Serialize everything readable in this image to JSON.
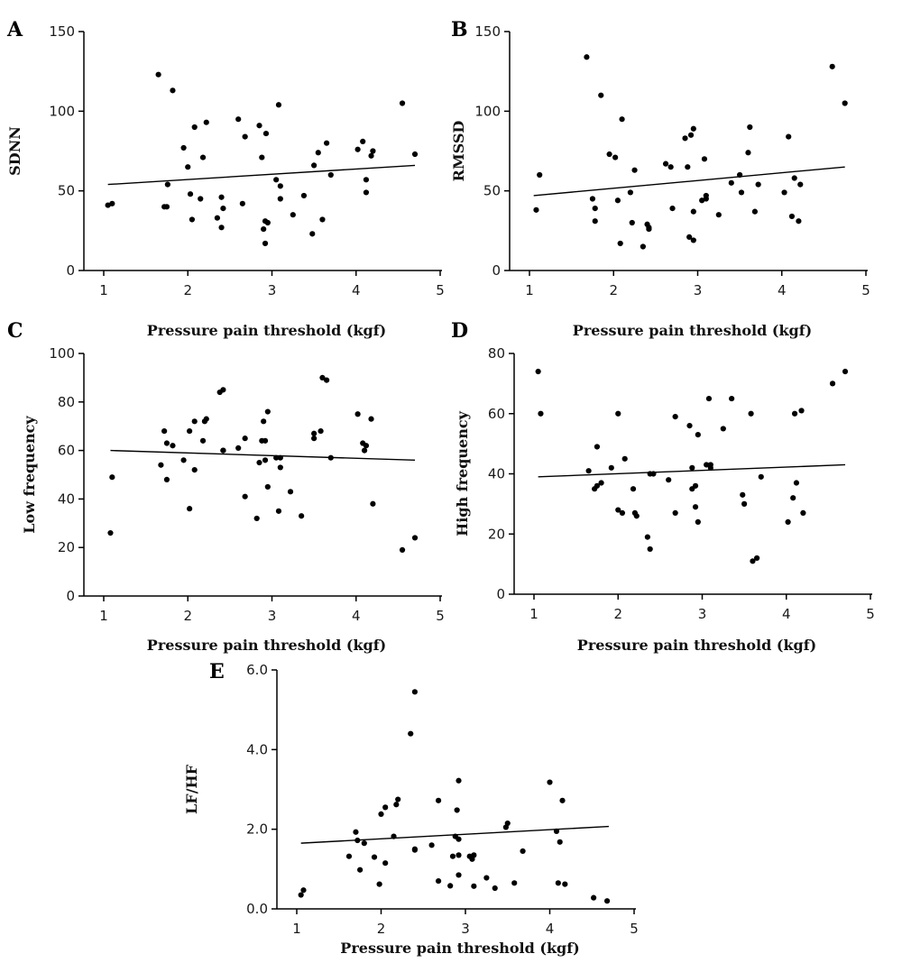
{
  "chart_data": [
    {
      "type": "scatter",
      "panel": "A",
      "title": "",
      "xlabel": "Pressure pain threshold (kgf)",
      "ylabel": "SDNN",
      "xlim": [
        1,
        5
      ],
      "ylim": [
        0,
        150
      ],
      "xticks": [
        "1",
        "2",
        "3",
        "4",
        "5"
      ],
      "yticks": [
        "0",
        "50",
        "100",
        "150"
      ],
      "trendline": [
        [
          1.05,
          54
        ],
        [
          4.7,
          66
        ]
      ],
      "points": [
        [
          1.05,
          41
        ],
        [
          1.1,
          42
        ],
        [
          1.65,
          123
        ],
        [
          1.72,
          40
        ],
        [
          1.75,
          40
        ],
        [
          1.76,
          54
        ],
        [
          1.82,
          113
        ],
        [
          1.95,
          77
        ],
        [
          2.0,
          65
        ],
        [
          2.03,
          48
        ],
        [
          2.05,
          32
        ],
        [
          2.08,
          90
        ],
        [
          2.15,
          45
        ],
        [
          2.18,
          71
        ],
        [
          2.22,
          93
        ],
        [
          2.35,
          33
        ],
        [
          2.4,
          27
        ],
        [
          2.4,
          46
        ],
        [
          2.42,
          39
        ],
        [
          2.6,
          95
        ],
        [
          2.65,
          42
        ],
        [
          2.68,
          84
        ],
        [
          2.85,
          91
        ],
        [
          2.88,
          71
        ],
        [
          2.9,
          26
        ],
        [
          2.92,
          31
        ],
        [
          2.92,
          17
        ],
        [
          2.95,
          30
        ],
        [
          2.93,
          86
        ],
        [
          3.05,
          57
        ],
        [
          3.08,
          104
        ],
        [
          3.1,
          53
        ],
        [
          3.1,
          45
        ],
        [
          3.25,
          35
        ],
        [
          3.38,
          47
        ],
        [
          3.48,
          23
        ],
        [
          3.5,
          66
        ],
        [
          3.55,
          74
        ],
        [
          3.6,
          32
        ],
        [
          3.65,
          80
        ],
        [
          3.7,
          60
        ],
        [
          4.02,
          76
        ],
        [
          4.08,
          81
        ],
        [
          4.12,
          49
        ],
        [
          4.12,
          57
        ],
        [
          4.18,
          72
        ],
        [
          4.2,
          75
        ],
        [
          4.55,
          105
        ],
        [
          4.7,
          73
        ]
      ]
    },
    {
      "type": "scatter",
      "panel": "B",
      "title": "",
      "xlabel": "Pressure pain threshold (kgf)",
      "ylabel": "RMSSD",
      "xlim": [
        1,
        5
      ],
      "ylim": [
        0,
        150
      ],
      "xticks": [
        "1",
        "2",
        "3",
        "4",
        "5"
      ],
      "yticks": [
        "0",
        "50",
        "100",
        "150"
      ],
      "trendline": [
        [
          1.05,
          47
        ],
        [
          4.75,
          65
        ]
      ],
      "points": [
        [
          1.08,
          38
        ],
        [
          1.12,
          60
        ],
        [
          1.68,
          134
        ],
        [
          1.75,
          45
        ],
        [
          1.78,
          39
        ],
        [
          1.78,
          31
        ],
        [
          1.85,
          110
        ],
        [
          1.95,
          73
        ],
        [
          2.02,
          71
        ],
        [
          2.05,
          44
        ],
        [
          2.08,
          17
        ],
        [
          2.1,
          95
        ],
        [
          2.2,
          49
        ],
        [
          2.22,
          30
        ],
        [
          2.25,
          63
        ],
        [
          2.35,
          15
        ],
        [
          2.4,
          29
        ],
        [
          2.42,
          26
        ],
        [
          2.42,
          27
        ],
        [
          2.62,
          67
        ],
        [
          2.68,
          65
        ],
        [
          2.7,
          39
        ],
        [
          2.85,
          83
        ],
        [
          2.88,
          65
        ],
        [
          2.9,
          21
        ],
        [
          2.92,
          85
        ],
        [
          2.95,
          19
        ],
        [
          2.95,
          89
        ],
        [
          2.95,
          37
        ],
        [
          3.05,
          44
        ],
        [
          3.08,
          70
        ],
        [
          3.1,
          47
        ],
        [
          3.1,
          45
        ],
        [
          3.25,
          35
        ],
        [
          3.4,
          55
        ],
        [
          3.5,
          60
        ],
        [
          3.52,
          49
        ],
        [
          3.6,
          74
        ],
        [
          3.62,
          90
        ],
        [
          3.68,
          37
        ],
        [
          3.72,
          54
        ],
        [
          4.03,
          49
        ],
        [
          4.08,
          84
        ],
        [
          4.12,
          34
        ],
        [
          4.15,
          58
        ],
        [
          4.2,
          31
        ],
        [
          4.22,
          54
        ],
        [
          4.6,
          128
        ],
        [
          4.75,
          105
        ]
      ]
    },
    {
      "type": "scatter",
      "panel": "C",
      "title": "",
      "xlabel": "Pressure pain threshold (kgf)",
      "ylabel": "Low frequency",
      "xlim": [
        1,
        5
      ],
      "ylim": [
        0,
        100
      ],
      "xticks": [
        "1",
        "2",
        "3",
        "4",
        "5"
      ],
      "yticks": [
        "0",
        "20",
        "40",
        "60",
        "80",
        "100"
      ],
      "trendline": [
        [
          1.08,
          60
        ],
        [
          4.7,
          56
        ]
      ],
      "points": [
        [
          1.08,
          26
        ],
        [
          1.1,
          49
        ],
        [
          1.68,
          54
        ],
        [
          1.72,
          68
        ],
        [
          1.75,
          48
        ],
        [
          1.75,
          63
        ],
        [
          1.82,
          62
        ],
        [
          1.95,
          56
        ],
        [
          2.02,
          36
        ],
        [
          2.02,
          68
        ],
        [
          2.08,
          72
        ],
        [
          2.08,
          52
        ],
        [
          2.18,
          64
        ],
        [
          2.2,
          72
        ],
        [
          2.22,
          73
        ],
        [
          2.38,
          84
        ],
        [
          2.42,
          85
        ],
        [
          2.42,
          60
        ],
        [
          2.42,
          60
        ],
        [
          2.6,
          61
        ],
        [
          2.68,
          41
        ],
        [
          2.68,
          65
        ],
        [
          2.82,
          32
        ],
        [
          2.85,
          55
        ],
        [
          2.88,
          64
        ],
        [
          2.9,
          72
        ],
        [
          2.92,
          64
        ],
        [
          2.92,
          56
        ],
        [
          2.95,
          76
        ],
        [
          2.95,
          45
        ],
        [
          3.05,
          57
        ],
        [
          3.08,
          35
        ],
        [
          3.1,
          53
        ],
        [
          3.1,
          57
        ],
        [
          3.22,
          43
        ],
        [
          3.35,
          33
        ],
        [
          3.5,
          67
        ],
        [
          3.5,
          65
        ],
        [
          3.58,
          68
        ],
        [
          3.6,
          90
        ],
        [
          3.65,
          89
        ],
        [
          3.7,
          57
        ],
        [
          4.02,
          75
        ],
        [
          4.08,
          63
        ],
        [
          4.1,
          60
        ],
        [
          4.12,
          62
        ],
        [
          4.18,
          73
        ],
        [
          4.2,
          38
        ],
        [
          4.55,
          19
        ],
        [
          4.7,
          24
        ]
      ]
    },
    {
      "type": "scatter",
      "panel": "D",
      "title": "",
      "xlabel": "Pressure pain threshold (kgf)",
      "ylabel": "High frequency",
      "xlim": [
        1,
        5
      ],
      "ylim": [
        0,
        80
      ],
      "xticks": [
        "1",
        "2",
        "3",
        "4",
        "5"
      ],
      "yticks": [
        "0",
        "20",
        "40",
        "60",
        "80"
      ],
      "trendline": [
        [
          1.05,
          39
        ],
        [
          4.7,
          43
        ]
      ],
      "points": [
        [
          1.05,
          74
        ],
        [
          1.08,
          60
        ],
        [
          1.65,
          41
        ],
        [
          1.72,
          35
        ],
        [
          1.75,
          36
        ],
        [
          1.75,
          49
        ],
        [
          1.8,
          37
        ],
        [
          1.92,
          42
        ],
        [
          2.0,
          60
        ],
        [
          2.0,
          28
        ],
        [
          2.05,
          27
        ],
        [
          2.08,
          45
        ],
        [
          2.18,
          35
        ],
        [
          2.2,
          27
        ],
        [
          2.22,
          26
        ],
        [
          2.35,
          19
        ],
        [
          2.38,
          15
        ],
        [
          2.38,
          40
        ],
        [
          2.42,
          40
        ],
        [
          2.6,
          38
        ],
        [
          2.68,
          59
        ],
        [
          2.68,
          27
        ],
        [
          2.85,
          56
        ],
        [
          2.88,
          42
        ],
        [
          2.88,
          35
        ],
        [
          2.92,
          29
        ],
        [
          2.92,
          36
        ],
        [
          2.95,
          53
        ],
        [
          2.95,
          24
        ],
        [
          3.05,
          43
        ],
        [
          3.08,
          65
        ],
        [
          3.1,
          43
        ],
        [
          3.1,
          42
        ],
        [
          3.25,
          55
        ],
        [
          3.35,
          65
        ],
        [
          3.48,
          33
        ],
        [
          3.5,
          30
        ],
        [
          3.58,
          60
        ],
        [
          3.6,
          11
        ],
        [
          3.65,
          12
        ],
        [
          3.7,
          39
        ],
        [
          4.02,
          24
        ],
        [
          4.08,
          32
        ],
        [
          4.1,
          60
        ],
        [
          4.12,
          37
        ],
        [
          4.18,
          61
        ],
        [
          4.2,
          27
        ],
        [
          4.55,
          70
        ],
        [
          4.7,
          74
        ]
      ]
    },
    {
      "type": "scatter",
      "panel": "E",
      "title": "",
      "xlabel": "Pressure pain threshold (kgf)",
      "ylabel": "LF/HF",
      "xlim": [
        1,
        5
      ],
      "ylim": [
        0,
        6
      ],
      "xticks": [
        "1",
        "2",
        "3",
        "4",
        "5"
      ],
      "yticks": [
        "0.0",
        "2.0",
        "4.0",
        "6.0"
      ],
      "trendline": [
        [
          1.05,
          1.65
        ],
        [
          4.7,
          2.07
        ]
      ],
      "points": [
        [
          1.05,
          0.35
        ],
        [
          1.08,
          0.47
        ],
        [
          1.62,
          1.32
        ],
        [
          1.7,
          1.93
        ],
        [
          1.72,
          1.72
        ],
        [
          1.75,
          0.98
        ],
        [
          1.8,
          1.65
        ],
        [
          1.92,
          1.3
        ],
        [
          1.98,
          0.62
        ],
        [
          2.0,
          2.38
        ],
        [
          2.05,
          2.55
        ],
        [
          2.05,
          1.15
        ],
        [
          2.15,
          1.82
        ],
        [
          2.18,
          2.62
        ],
        [
          2.2,
          2.75
        ],
        [
          2.35,
          4.4
        ],
        [
          2.4,
          5.45
        ],
        [
          2.4,
          1.5
        ],
        [
          2.4,
          1.48
        ],
        [
          2.6,
          1.6
        ],
        [
          2.68,
          2.72
        ],
        [
          2.68,
          0.7
        ],
        [
          2.82,
          0.58
        ],
        [
          2.85,
          1.32
        ],
        [
          2.88,
          1.82
        ],
        [
          2.9,
          2.48
        ],
        [
          2.92,
          0.85
        ],
        [
          2.92,
          3.22
        ],
        [
          2.92,
          1.75
        ],
        [
          2.92,
          1.35
        ],
        [
          3.05,
          1.32
        ],
        [
          3.08,
          1.25
        ],
        [
          3.1,
          0.57
        ],
        [
          3.1,
          1.35
        ],
        [
          3.25,
          0.78
        ],
        [
          3.35,
          0.52
        ],
        [
          3.48,
          2.05
        ],
        [
          3.5,
          2.15
        ],
        [
          3.58,
          0.65
        ],
        [
          3.68,
          1.45
        ],
        [
          4.0,
          3.18
        ],
        [
          4.08,
          1.95
        ],
        [
          4.1,
          0.65
        ],
        [
          4.12,
          1.68
        ],
        [
          4.15,
          2.72
        ],
        [
          4.18,
          0.62
        ],
        [
          4.52,
          0.28
        ],
        [
          4.68,
          0.2
        ]
      ]
    }
  ]
}
